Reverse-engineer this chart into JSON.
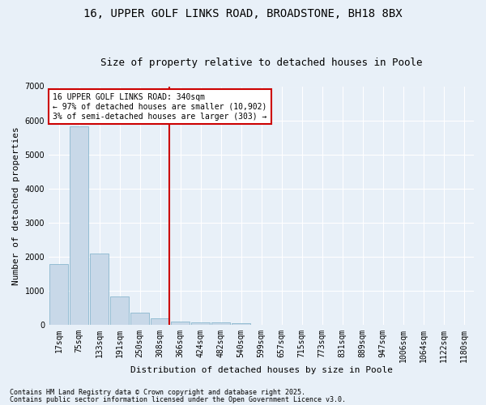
{
  "title_line1": "16, UPPER GOLF LINKS ROAD, BROADSTONE, BH18 8BX",
  "title_line2": "Size of property relative to detached houses in Poole",
  "xlabel": "Distribution of detached houses by size in Poole",
  "ylabel": "Number of detached properties",
  "bar_color": "#c8d8e8",
  "bar_edge_color": "#7aafc8",
  "vline_color": "#cc0000",
  "categories": [
    "17sqm",
    "75sqm",
    "133sqm",
    "191sqm",
    "250sqm",
    "308sqm",
    "366sqm",
    "424sqm",
    "482sqm",
    "540sqm",
    "599sqm",
    "657sqm",
    "715sqm",
    "773sqm",
    "831sqm",
    "889sqm",
    "947sqm",
    "1006sqm",
    "1064sqm",
    "1122sqm",
    "1180sqm"
  ],
  "values": [
    1780,
    5820,
    2080,
    820,
    360,
    200,
    100,
    75,
    65,
    40,
    0,
    0,
    0,
    0,
    0,
    0,
    0,
    0,
    0,
    0,
    0
  ],
  "ylim": [
    0,
    7000
  ],
  "yticks": [
    0,
    1000,
    2000,
    3000,
    4000,
    5000,
    6000,
    7000
  ],
  "annotation_text": "16 UPPER GOLF LINKS ROAD: 340sqm\n← 97% of detached houses are smaller (10,902)\n3% of semi-detached houses are larger (303) →",
  "annotation_box_color": "#ffffff",
  "annotation_box_edge": "#cc0000",
  "footnote1": "Contains HM Land Registry data © Crown copyright and database right 2025.",
  "footnote2": "Contains public sector information licensed under the Open Government Licence v3.0.",
  "background_color": "#e8f0f8",
  "grid_color": "#ffffff",
  "title_fontsize": 10,
  "subtitle_fontsize": 9,
  "tick_fontsize": 7,
  "ylabel_fontsize": 8,
  "xlabel_fontsize": 8,
  "annot_fontsize": 7,
  "footnote_fontsize": 6
}
